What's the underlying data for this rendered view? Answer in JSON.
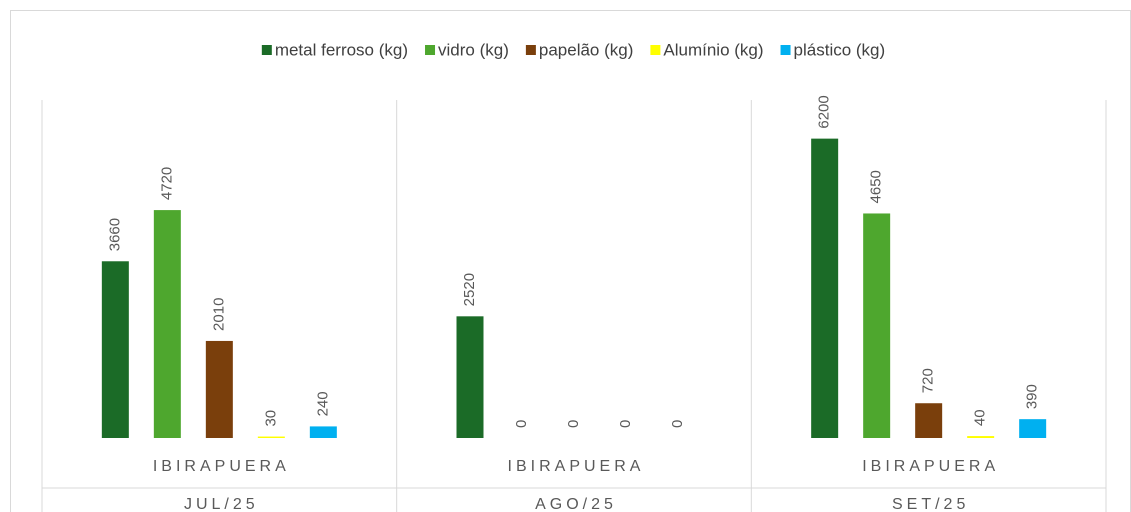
{
  "chart_data": {
    "type": "bar",
    "categories": [
      "JUL/25",
      "AGO/25",
      "SET/25"
    ],
    "sublabels": [
      "IBIRAPUERA",
      "IBIRAPUERA",
      "IBIRAPUERA"
    ],
    "series": [
      {
        "name": "metal ferroso (kg)",
        "color": "#1b6b27",
        "values": [
          3660,
          2520,
          6200
        ]
      },
      {
        "name": "vidro (kg)",
        "color": "#4ea72e",
        "values": [
          4720,
          0,
          4650
        ]
      },
      {
        "name": "papelão (kg)",
        "color": "#7a3f0c",
        "values": [
          2010,
          0,
          720
        ]
      },
      {
        "name": "Alumínio (kg)",
        "color": "#ffff00",
        "values": [
          30,
          0,
          40
        ]
      },
      {
        "name": "plástico (kg)",
        "color": "#00b0f0",
        "values": [
          240,
          0,
          390
        ]
      }
    ],
    "ylim": [
      0,
      7000
    ],
    "legend": "top"
  }
}
